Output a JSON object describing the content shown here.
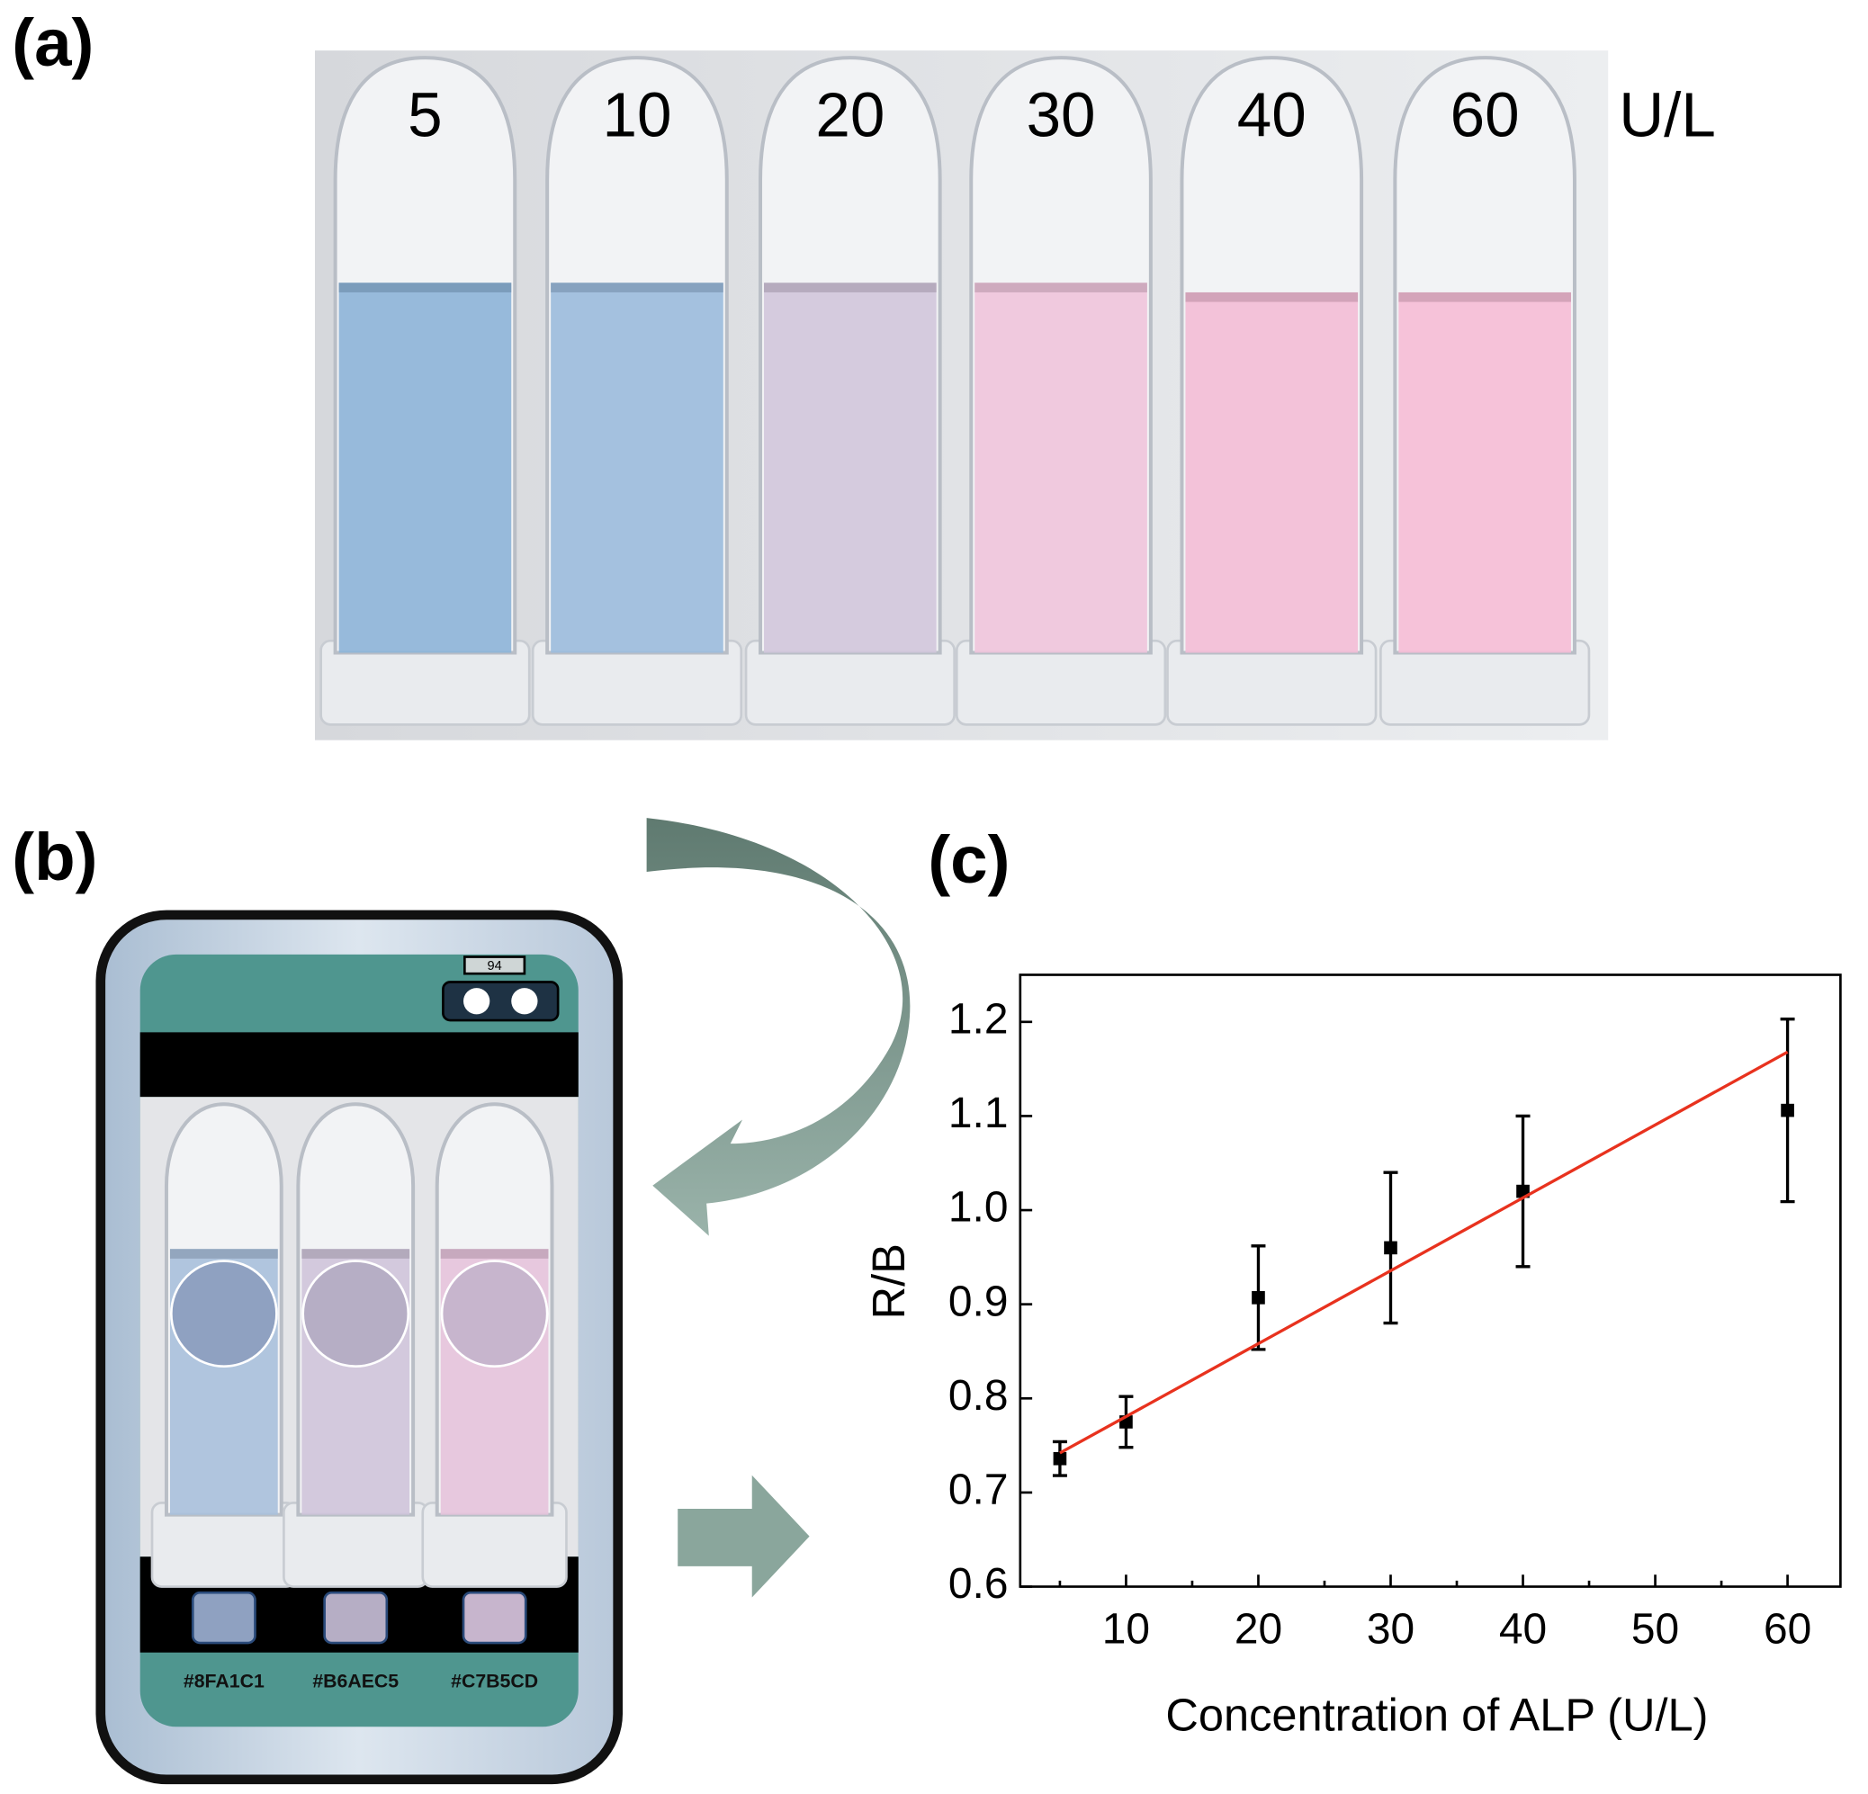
{
  "panels": {
    "a": "(a)",
    "b": "(b)",
    "c": "(c)"
  },
  "photo": {
    "labels": [
      "5",
      "10",
      "20",
      "30",
      "40",
      "60"
    ],
    "unit": "U/L"
  },
  "phone": {
    "battery": "94",
    "swatches": [
      "#8FA1C1",
      "#B6AEC5",
      "#C7B5CD"
    ]
  },
  "chart_data": {
    "type": "scatter",
    "x_label": "Concentration of ALP (U/L)",
    "y_label": "R/B",
    "x": [
      5,
      10,
      20,
      30,
      40,
      60
    ],
    "values": [
      0.736,
      0.775,
      0.907,
      0.96,
      1.02,
      1.106
    ],
    "errors": [
      0.018,
      0.027,
      0.055,
      0.08,
      0.08,
      0.097
    ],
    "color": "#000000",
    "fit": {
      "color": "#e8321e",
      "x": [
        5,
        60
      ],
      "values": [
        0.742,
        1.168
      ]
    },
    "xlim": [
      2,
      64
    ],
    "ylim": [
      0.6,
      1.25
    ],
    "xticks": [
      10,
      20,
      30,
      40,
      50,
      60
    ],
    "xminorticks": [
      5,
      15,
      25,
      35,
      45,
      55
    ],
    "yticks": [
      {
        "value": 0.6,
        "label": "0.6"
      },
      {
        "value": 0.7,
        "label": "0.7"
      },
      {
        "value": 0.8,
        "label": "0.8"
      },
      {
        "value": 0.9,
        "label": "0.9"
      },
      {
        "value": 1.0,
        "label": "1.0"
      },
      {
        "value": 1.1,
        "label": "1.1"
      },
      {
        "value": 1.2,
        "label": "1.2"
      }
    ]
  }
}
